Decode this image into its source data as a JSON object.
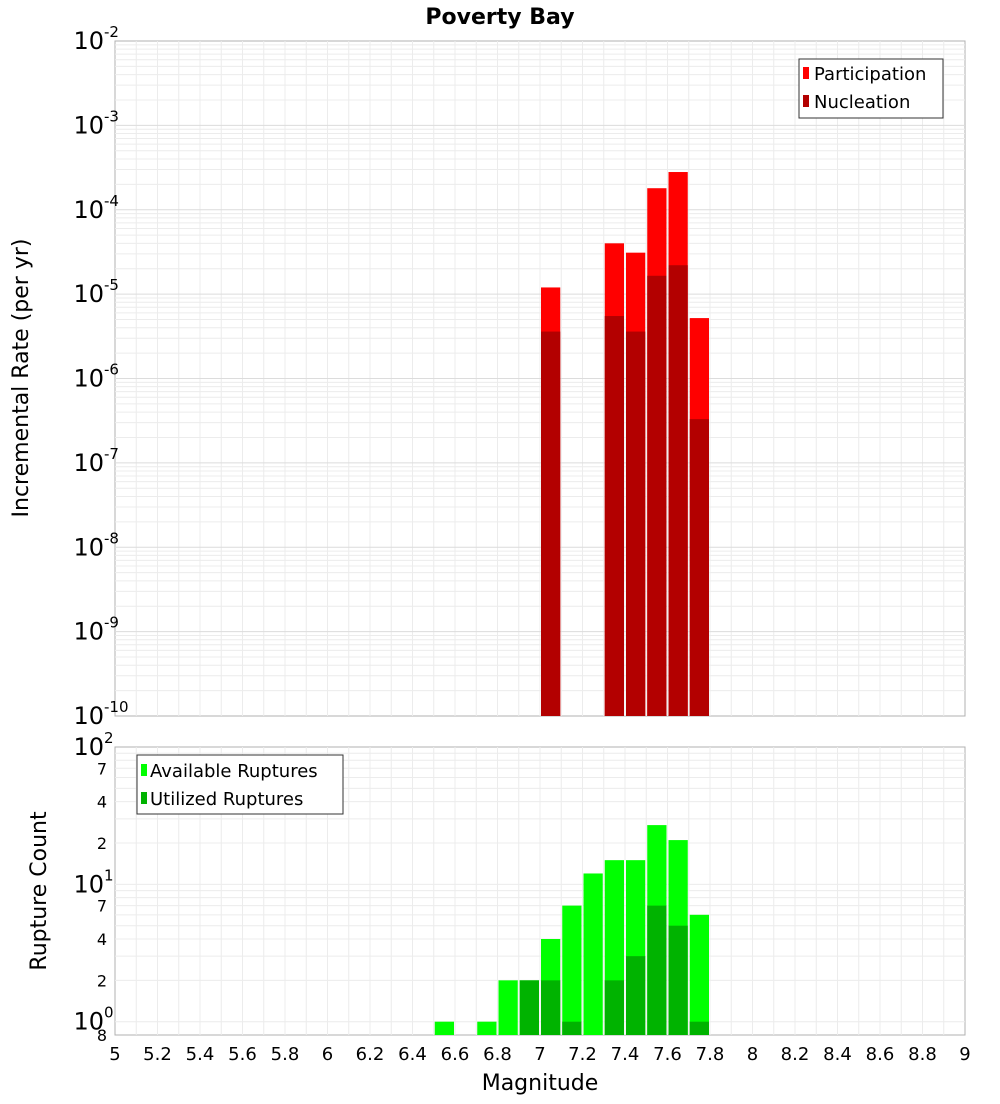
{
  "chart_data": [
    {
      "type": "bar",
      "title": "Poverty Bay",
      "xlabel": "",
      "ylabel": "Incremental Rate (per yr)",
      "y_scale": "log",
      "ylim": [
        1e-10,
        0.01
      ],
      "xlim": [
        5,
        9
      ],
      "grid": true,
      "y_ticks": [
        {
          "base": "10",
          "exp": "-10"
        },
        {
          "base": "10",
          "exp": "-9"
        },
        {
          "base": "10",
          "exp": "-8"
        },
        {
          "base": "10",
          "exp": "-7"
        },
        {
          "base": "10",
          "exp": "-6"
        },
        {
          "base": "10",
          "exp": "-5"
        },
        {
          "base": "10",
          "exp": "-4"
        },
        {
          "base": "10",
          "exp": "-3"
        },
        {
          "base": "10",
          "exp": "-2"
        }
      ],
      "legend_position": "top-right",
      "legend": [
        {
          "label": "Participation",
          "color": "#ff0000"
        },
        {
          "label": "Nucleation",
          "color": "#b30000"
        }
      ],
      "series": [
        {
          "name": "Participation",
          "color": "#ff0000",
          "x": [
            7.05,
            7.35,
            7.45,
            7.55,
            7.65,
            7.75
          ],
          "values": [
            1.2e-05,
            4e-05,
            3.1e-05,
            0.00018,
            0.00028,
            5.2e-06
          ]
        },
        {
          "name": "Nucleation",
          "color": "#b30000",
          "x": [
            7.05,
            7.35,
            7.45,
            7.55,
            7.65,
            7.75
          ],
          "values": [
            3.6e-06,
            5.5e-06,
            3.6e-06,
            1.65e-05,
            2.2e-05,
            3.3e-07
          ]
        }
      ]
    },
    {
      "type": "bar",
      "title": "",
      "xlabel": "Magnitude",
      "ylabel": "Rupture Count",
      "y_scale": "log",
      "ylim": [
        0.8,
        100
      ],
      "xlim": [
        5,
        9
      ],
      "grid": true,
      "x_ticks": [
        "5",
        "5.2",
        "5.4",
        "5.6",
        "5.8",
        "6",
        "6.2",
        "6.4",
        "6.6",
        "6.8",
        "7",
        "7.2",
        "7.4",
        "7.6",
        "7.8",
        "8",
        "8.2",
        "8.4",
        "8.6",
        "8.8",
        "9"
      ],
      "y_major_ticks": [
        {
          "value": 1,
          "base": "10",
          "exp": "0"
        },
        {
          "value": 10,
          "base": "10",
          "exp": "1"
        },
        {
          "value": 100,
          "base": "10",
          "exp": "2"
        }
      ],
      "y_minor_ticks": [
        {
          "value": 0.8,
          "label": "8"
        },
        {
          "value": 2,
          "label": "2"
        },
        {
          "value": 4,
          "label": "4"
        },
        {
          "value": 7,
          "label": "7"
        },
        {
          "value": 20,
          "label": "2"
        },
        {
          "value": 40,
          "label": "4"
        },
        {
          "value": 70,
          "label": "7"
        }
      ],
      "legend_position": "top-left",
      "legend": [
        {
          "label": "Available Ruptures",
          "color": "#00ff00"
        },
        {
          "label": "Utilized Ruptures",
          "color": "#00b300"
        }
      ],
      "series": [
        {
          "name": "Available Ruptures",
          "color": "#00ff00",
          "x": [
            6.55,
            6.75,
            6.85,
            6.95,
            7.05,
            7.15,
            7.25,
            7.35,
            7.45,
            7.55,
            7.65,
            7.75
          ],
          "values": [
            1,
            1,
            2,
            2,
            4,
            7,
            12,
            15,
            15,
            27,
            21,
            6
          ]
        },
        {
          "name": "Utilized Ruptures",
          "color": "#00b300",
          "x": [
            6.95,
            7.05,
            7.15,
            7.35,
            7.45,
            7.55,
            7.65,
            7.75
          ],
          "values": [
            2,
            2,
            1,
            2,
            3,
            7,
            5,
            1
          ]
        }
      ]
    }
  ]
}
